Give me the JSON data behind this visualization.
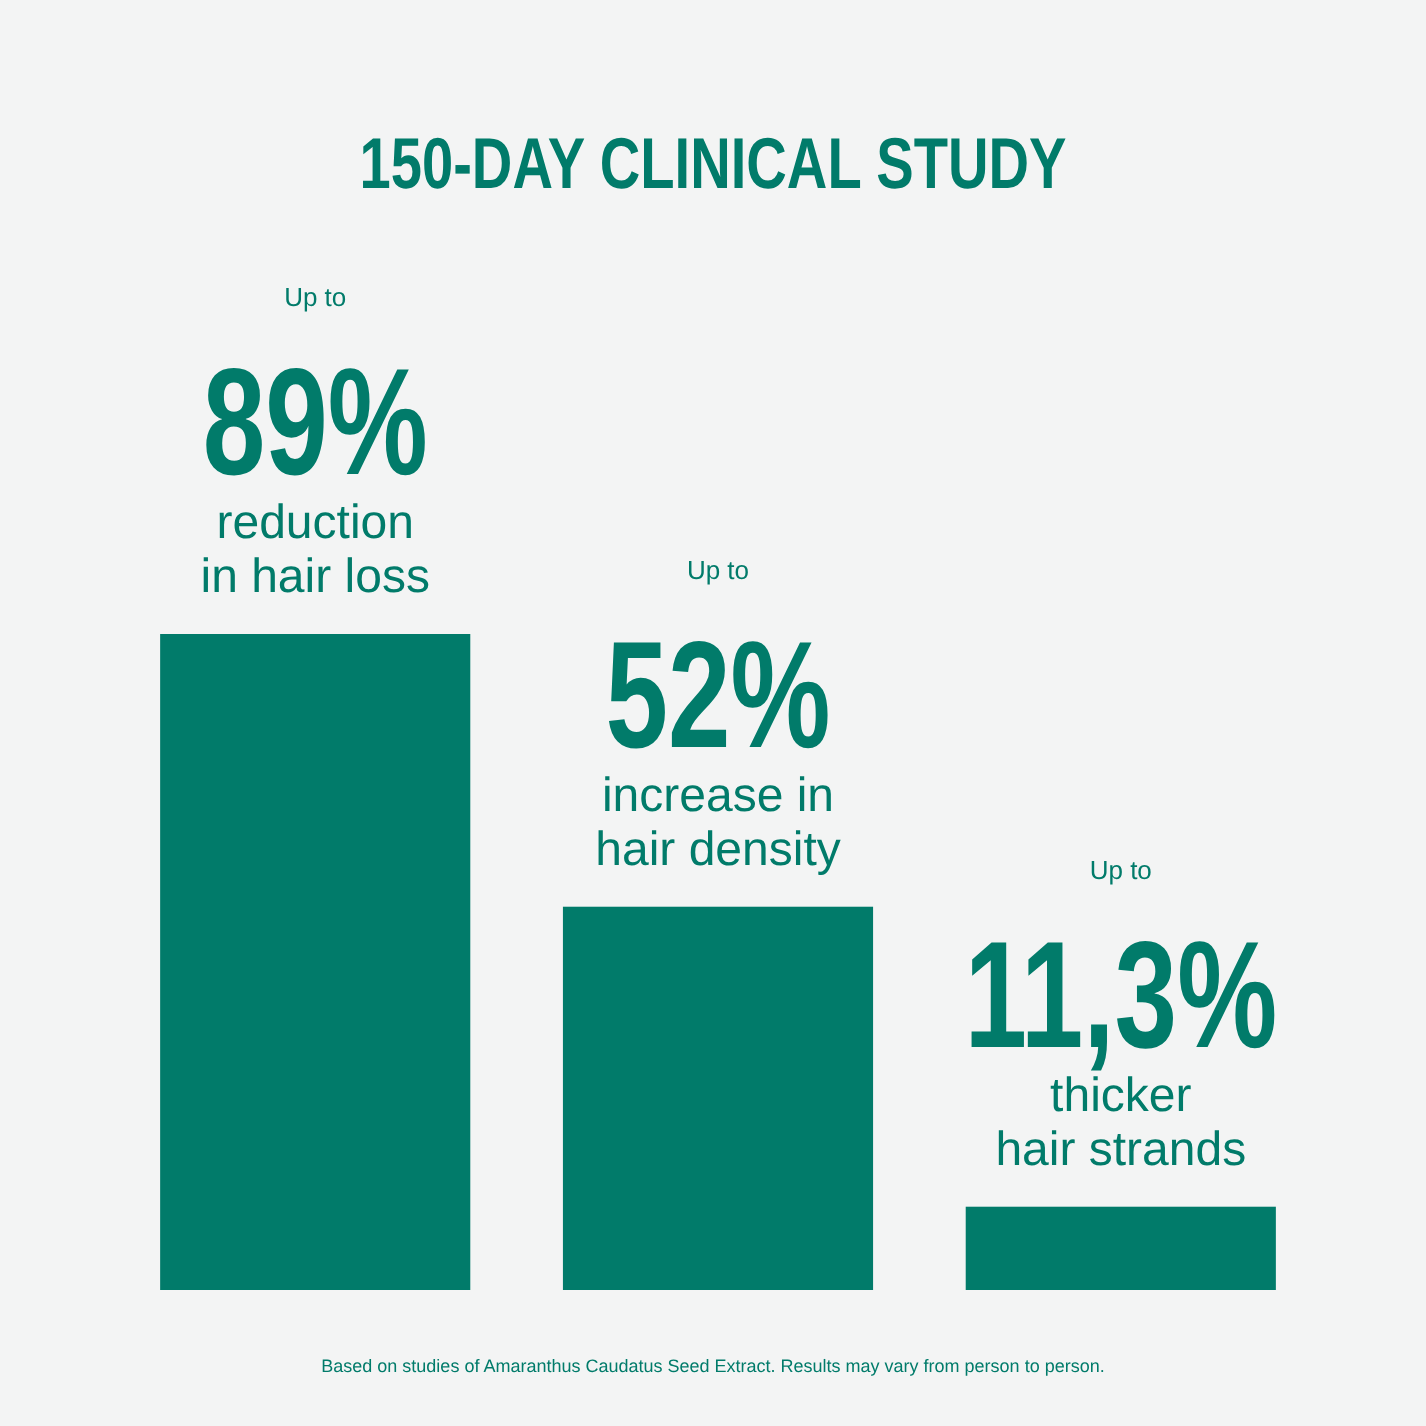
{
  "chart_data": {
    "type": "bar",
    "title": "150-DAY CLINICAL STUDY",
    "categories": [
      "reduction in hair loss",
      "increase in hair density",
      "thicker hair strands"
    ],
    "values": [
      89,
      52,
      11.3
    ],
    "value_labels": [
      "89%",
      "52%",
      "11,3%"
    ],
    "color": "#017b6a",
    "annotations": [
      "Up to",
      "Up to",
      "Up to",
      "Based on studies of Amaranthus Caudatus Seed Extract. Results may vary from person to person."
    ]
  }
}
